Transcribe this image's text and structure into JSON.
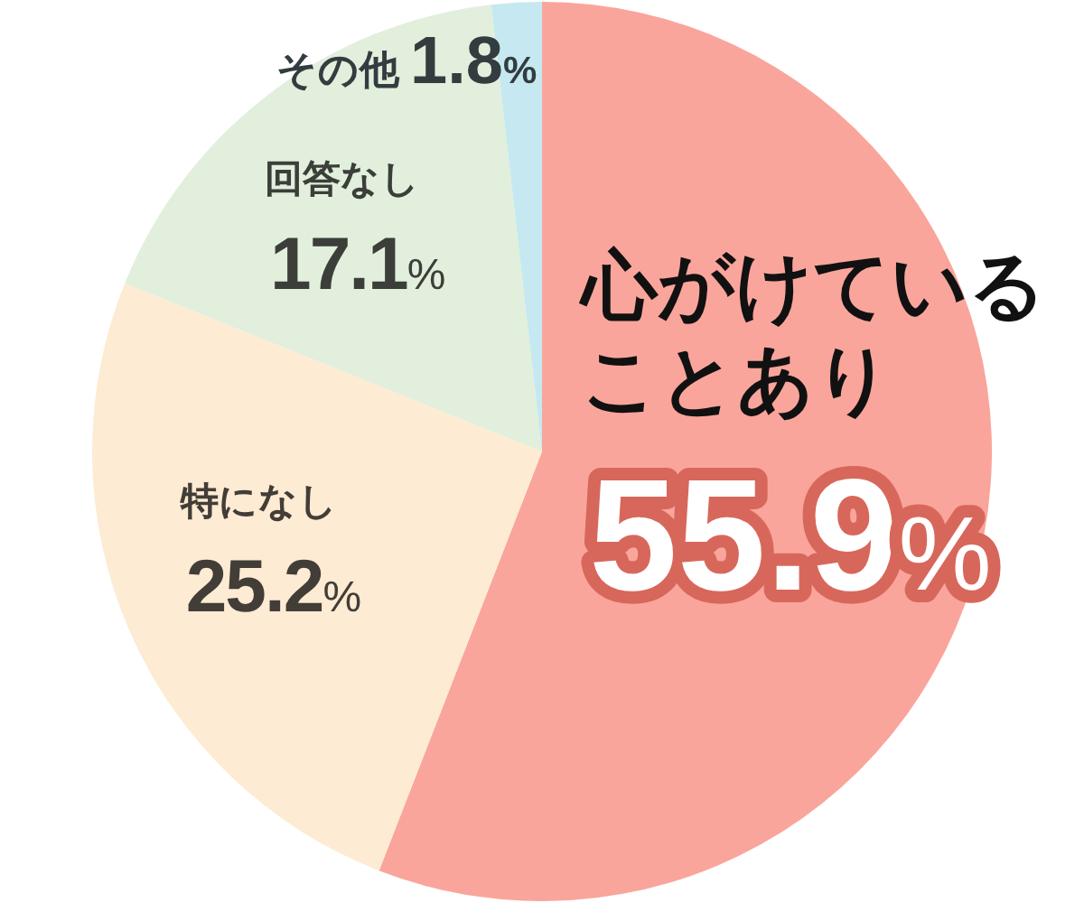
{
  "chart_data": {
    "type": "pie",
    "categories": [
      "心がけていることあり",
      "特になし",
      "回答なし",
      "その他"
    ],
    "values": [
      55.9,
      25.2,
      17.1,
      1.8
    ],
    "colors": [
      "#faa59b",
      "#fdebd3",
      "#e1efdc",
      "#c5e8f1"
    ],
    "value_labels": [
      "55.9%",
      "25.2%",
      "17.1%",
      "1.8%"
    ]
  }
}
